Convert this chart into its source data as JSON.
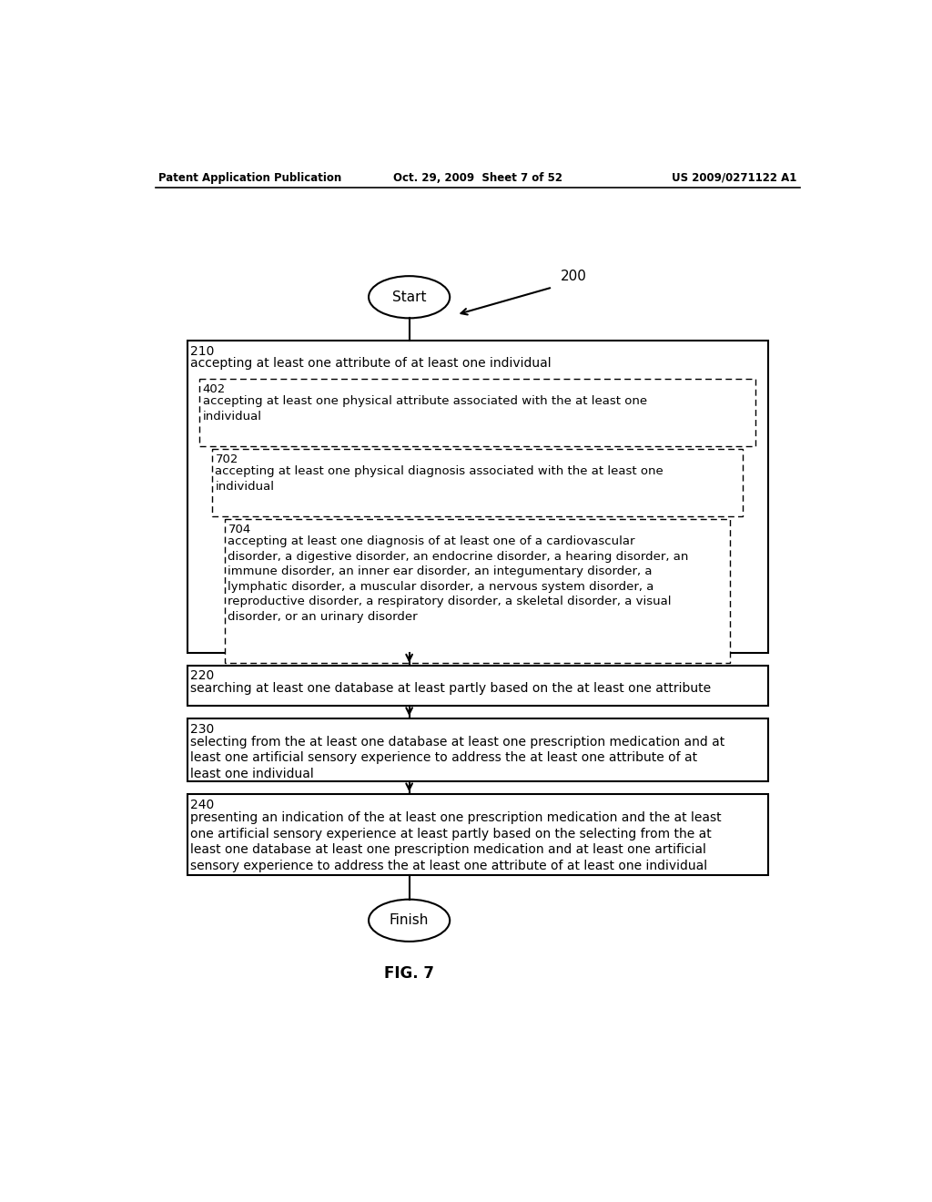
{
  "header_left": "Patent Application Publication",
  "header_mid": "Oct. 29, 2009  Sheet 7 of 52",
  "header_right": "US 2009/0271122 A1",
  "fig_label": "FIG. 7",
  "label_200": "200",
  "start_label": "Start",
  "finish_label": "Finish",
  "box_210_num": "210",
  "box_210_text": "accepting at least one attribute of at least one individual",
  "box_402_num": "402",
  "box_402_text": "accepting at least one physical attribute associated with the at least one\nindividual",
  "box_702_num": "702",
  "box_702_text": "accepting at least one physical diagnosis associated with the at least one\nindividual",
  "box_704_num": "704",
  "box_704_text": "accepting at least one diagnosis of at least one of a cardiovascular\ndisorder, a digestive disorder, an endocrine disorder, a hearing disorder, an\nimmune disorder, an inner ear disorder, an integumentary disorder, a\nlymphatic disorder, a muscular disorder, a nervous system disorder, a\nreproductive disorder, a respiratory disorder, a skeletal disorder, a visual\ndisorder, or an urinary disorder",
  "box_220_num": "220",
  "box_220_text": "searching at least one database at least partly based on the at least one attribute",
  "box_230_num": "230",
  "box_230_text": "selecting from the at least one database at least one prescription medication and at\nleast one artificial sensory experience to address the at least one attribute of at\nleast one individual",
  "box_240_num": "240",
  "box_240_text": "presenting an indication of the at least one prescription medication and the at least\none artificial sensory experience at least partly based on the selecting from the at\nleast one database at least one prescription medication and at least one artificial\nsensory experience to address the at least one attribute of at least one individual",
  "bg_color": "#ffffff",
  "text_color": "#000000"
}
